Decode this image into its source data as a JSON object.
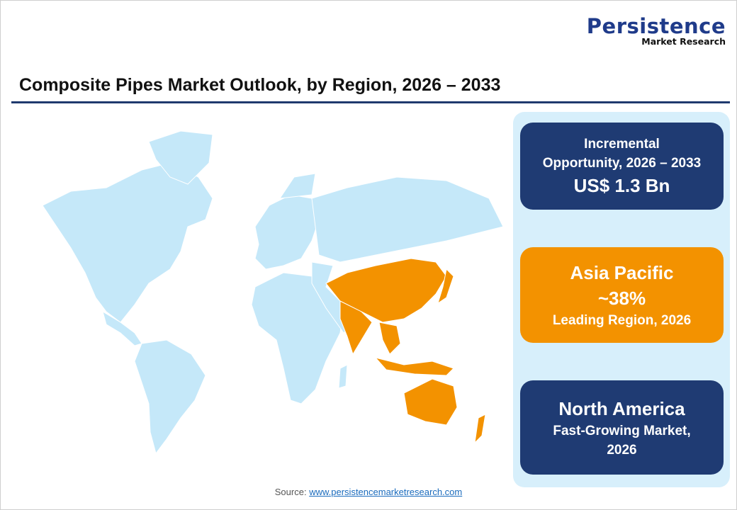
{
  "logo": {
    "main": "Persistence",
    "sub": "Market Research"
  },
  "title": "Composite Pipes Market Outlook, by Region, 2026 – 2033",
  "cards": [
    {
      "line1": "Incremental",
      "line2": "Opportunity, 2026 – 2033",
      "value": "US$ 1.3 Bn"
    },
    {
      "region": "Asia Pacific",
      "value": "~38%",
      "caption": "Leading Region, 2026"
    },
    {
      "region": "North America",
      "caption1": "Fast-Growing Market,",
      "caption2": "2026"
    }
  ],
  "source": {
    "label": "Source:",
    "link": "www.persistencemarketresearch.com"
  },
  "colors": {
    "navy": "#1f3b73",
    "orange": "#f39200",
    "map_base": "#c5e8f9",
    "highlight": "#f39200"
  }
}
